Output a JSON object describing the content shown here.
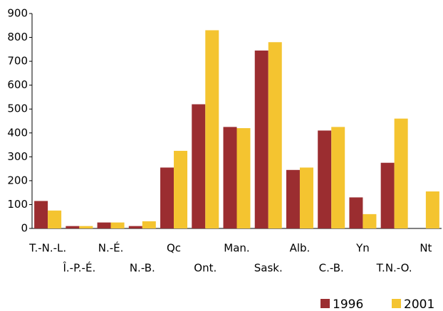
{
  "chart_data": {
    "type": "bar",
    "categories": [
      "T.-N.-L.",
      "Î.-P.-É.",
      "N.-É.",
      "N.-B.",
      "Qc",
      "Ont.",
      "Man.",
      "Sask.",
      "Alb.",
      "C.-B.",
      "Yn",
      "T.N.-O.",
      "Nt"
    ],
    "series": [
      {
        "name": "1996",
        "color": "#9b2d30",
        "values": [
          115,
          10,
          25,
          10,
          255,
          520,
          425,
          745,
          245,
          410,
          130,
          275,
          null
        ]
      },
      {
        "name": "2001",
        "color": "#f4c430",
        "values": [
          75,
          10,
          25,
          30,
          325,
          830,
          420,
          780,
          255,
          425,
          60,
          460,
          155
        ]
      }
    ],
    "ylim": [
      0,
      900
    ],
    "yticks": [
      0,
      100,
      200,
      300,
      400,
      500,
      600,
      700,
      800,
      900
    ],
    "grid": false,
    "legend": "bottom-right"
  }
}
